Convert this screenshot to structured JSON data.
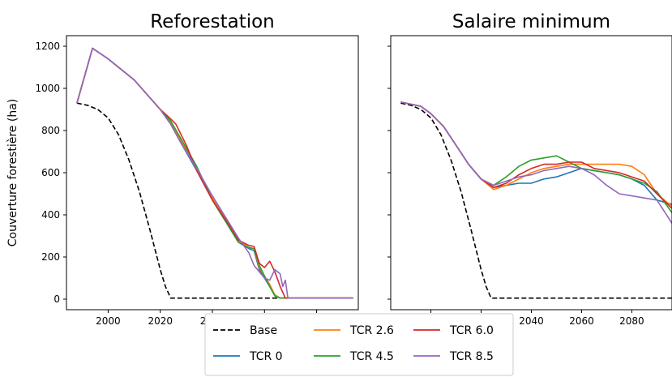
{
  "chart_data": [
    {
      "type": "line",
      "title": "Reforestation",
      "xlabel": "",
      "ylabel": "Couverture forestière (ha)",
      "xlim": [
        1984,
        2096
      ],
      "ylim": [
        -50,
        1250
      ],
      "xticks": [
        2000,
        2020,
        2040,
        2060,
        2080
      ],
      "yticks": [
        0,
        200,
        400,
        600,
        800,
        1000,
        1200
      ],
      "series": [
        {
          "name": "Base",
          "color": "#000000",
          "dash": true,
          "x": [
            1988,
            1992,
            1996,
            2000,
            2004,
            2008,
            2012,
            2016,
            2020,
            2022,
            2024,
            2030,
            2040,
            2050,
            2060,
            2070,
            2080,
            2090,
            2094
          ],
          "y": [
            930,
            920,
            900,
            860,
            780,
            660,
            510,
            330,
            140,
            60,
            5,
            5,
            5,
            5,
            5,
            5,
            5,
            5,
            5
          ]
        },
        {
          "name": "TCR 0",
          "color": "#1f77b4",
          "x": [
            1988,
            1994,
            2000,
            2010,
            2020,
            2024,
            2028,
            2034,
            2040,
            2046,
            2050,
            2054,
            2056,
            2058,
            2060,
            2062,
            2064,
            2066,
            2068,
            2094
          ],
          "y": [
            930,
            1190,
            1140,
            1040,
            900,
            830,
            740,
            610,
            470,
            350,
            270,
            240,
            230,
            140,
            100,
            60,
            20,
            5,
            5,
            5
          ]
        },
        {
          "name": "TCR 2.6",
          "color": "#ff7f0e",
          "x": [
            1988,
            1994,
            2000,
            2010,
            2020,
            2024,
            2028,
            2034,
            2040,
            2046,
            2050,
            2054,
            2056,
            2058,
            2060,
            2062,
            2064,
            2066,
            2094
          ],
          "y": [
            930,
            1190,
            1140,
            1040,
            900,
            840,
            750,
            620,
            480,
            360,
            280,
            245,
            240,
            150,
            110,
            70,
            20,
            5,
            5
          ]
        },
        {
          "name": "TCR 4.5",
          "color": "#2ca02c",
          "x": [
            1988,
            1994,
            2000,
            2010,
            2020,
            2024,
            2028,
            2034,
            2040,
            2046,
            2050,
            2054,
            2056,
            2058,
            2060,
            2062,
            2064,
            2066,
            2094
          ],
          "y": [
            930,
            1190,
            1140,
            1040,
            900,
            845,
            760,
            630,
            470,
            350,
            270,
            245,
            240,
            160,
            110,
            60,
            15,
            5,
            5
          ]
        },
        {
          "name": "TCR 6.0",
          "color": "#d62728",
          "x": [
            1988,
            1994,
            2000,
            2010,
            2020,
            2024,
            2026,
            2030,
            2034,
            2040,
            2046,
            2050,
            2054,
            2056,
            2058,
            2060,
            2062,
            2064,
            2066,
            2068,
            2094
          ],
          "y": [
            930,
            1190,
            1140,
            1040,
            900,
            855,
            830,
            730,
            610,
            470,
            360,
            280,
            255,
            250,
            170,
            150,
            180,
            130,
            60,
            5,
            5
          ]
        },
        {
          "name": "TCR 8.5",
          "color": "#9467bd",
          "x": [
            1988,
            1994,
            2000,
            2010,
            2020,
            2024,
            2028,
            2034,
            2040,
            2046,
            2050,
            2054,
            2056,
            2058,
            2060,
            2062,
            2064,
            2066,
            2067,
            2068,
            2069,
            2094
          ],
          "y": [
            930,
            1190,
            1140,
            1040,
            900,
            830,
            740,
            620,
            490,
            370,
            290,
            220,
            160,
            130,
            100,
            90,
            140,
            120,
            60,
            90,
            5,
            5
          ]
        }
      ]
    },
    {
      "type": "line",
      "title": "Salaire minimum",
      "xlabel": "",
      "ylabel": "",
      "xlim": [
        1984,
        2096
      ],
      "ylim": [
        -50,
        1250
      ],
      "xticks": [
        2000,
        2020,
        2040,
        2060,
        2080
      ],
      "yticks": [
        0,
        200,
        400,
        600,
        800,
        1000,
        1200
      ],
      "series": [
        {
          "name": "Base",
          "color": "#000000",
          "dash": true,
          "x": [
            1988,
            1992,
            1996,
            2000,
            2004,
            2008,
            2012,
            2016,
            2020,
            2022,
            2024,
            2030,
            2040,
            2050,
            2060,
            2070,
            2080,
            2090,
            2096
          ],
          "y": [
            930,
            920,
            900,
            860,
            780,
            660,
            510,
            330,
            140,
            60,
            5,
            5,
            5,
            5,
            5,
            5,
            5,
            5,
            5
          ]
        },
        {
          "name": "TCR 0",
          "color": "#1f77b4",
          "x": [
            1988,
            1992,
            1996,
            2000,
            2005,
            2010,
            2015,
            2020,
            2025,
            2030,
            2035,
            2040,
            2045,
            2050,
            2055,
            2060,
            2065,
            2070,
            2075,
            2080,
            2085,
            2090,
            2096
          ],
          "y": [
            935,
            925,
            915,
            880,
            820,
            730,
            640,
            570,
            530,
            540,
            550,
            550,
            570,
            580,
            600,
            620,
            610,
            600,
            590,
            570,
            540,
            470,
            450
          ]
        },
        {
          "name": "TCR 2.6",
          "color": "#ff7f0e",
          "x": [
            1988,
            1992,
            1996,
            2000,
            2005,
            2010,
            2015,
            2020,
            2025,
            2030,
            2035,
            2040,
            2045,
            2050,
            2055,
            2060,
            2065,
            2070,
            2075,
            2080,
            2085,
            2090,
            2096
          ],
          "y": [
            935,
            925,
            915,
            880,
            820,
            730,
            640,
            570,
            520,
            540,
            570,
            600,
            620,
            630,
            640,
            640,
            640,
            640,
            640,
            630,
            590,
            500,
            440
          ]
        },
        {
          "name": "TCR 4.5",
          "color": "#2ca02c",
          "x": [
            1988,
            1992,
            1996,
            2000,
            2005,
            2010,
            2015,
            2020,
            2025,
            2030,
            2035,
            2040,
            2045,
            2050,
            2055,
            2060,
            2065,
            2070,
            2075,
            2080,
            2085,
            2090,
            2096
          ],
          "y": [
            935,
            925,
            915,
            880,
            820,
            730,
            640,
            570,
            540,
            580,
            630,
            660,
            670,
            680,
            650,
            620,
            610,
            600,
            590,
            570,
            550,
            510,
            410
          ]
        },
        {
          "name": "TCR 6.0",
          "color": "#d62728",
          "x": [
            1988,
            1992,
            1996,
            2000,
            2005,
            2010,
            2015,
            2020,
            2025,
            2030,
            2035,
            2040,
            2045,
            2050,
            2055,
            2060,
            2065,
            2070,
            2075,
            2080,
            2085,
            2090,
            2096
          ],
          "y": [
            935,
            925,
            915,
            880,
            820,
            730,
            640,
            570,
            530,
            550,
            590,
            620,
            640,
            640,
            650,
            650,
            620,
            610,
            600,
            580,
            560,
            500,
            430
          ]
        },
        {
          "name": "TCR 8.5",
          "color": "#9467bd",
          "x": [
            1988,
            1992,
            1996,
            2000,
            2005,
            2010,
            2015,
            2020,
            2025,
            2030,
            2035,
            2040,
            2045,
            2050,
            2055,
            2060,
            2065,
            2070,
            2075,
            2080,
            2085,
            2090,
            2096
          ],
          "y": [
            935,
            925,
            915,
            880,
            820,
            730,
            640,
            570,
            540,
            560,
            580,
            590,
            610,
            620,
            630,
            620,
            590,
            540,
            500,
            490,
            480,
            470,
            360
          ]
        }
      ]
    }
  ],
  "legend": [
    {
      "label": "Base",
      "color": "#000000",
      "dash": true
    },
    {
      "label": "TCR 0",
      "color": "#1f77b4",
      "dash": false
    },
    {
      "label": "TCR 2.6",
      "color": "#ff7f0e",
      "dash": false
    },
    {
      "label": "TCR 4.5",
      "color": "#2ca02c",
      "dash": false
    },
    {
      "label": "TCR 6.0",
      "color": "#d62728",
      "dash": false
    },
    {
      "label": "TCR 8.5",
      "color": "#9467bd",
      "dash": false
    }
  ],
  "legend_placement": "bottom-center"
}
